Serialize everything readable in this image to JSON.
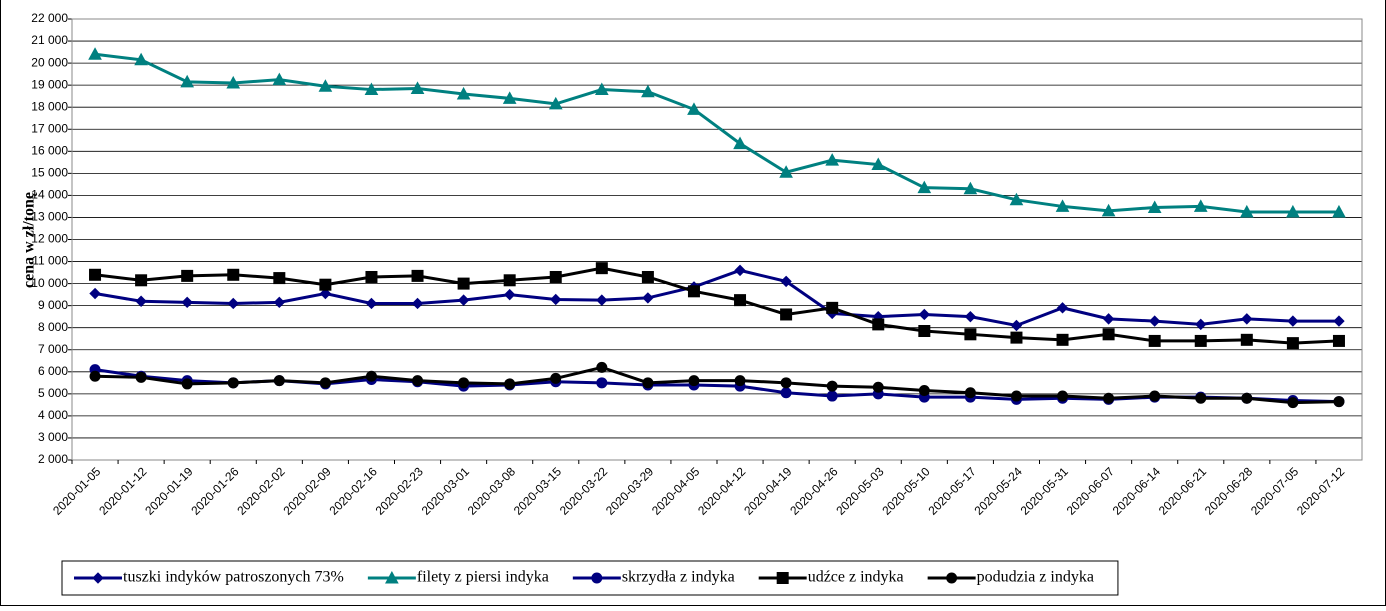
{
  "chart_data": {
    "type": "line",
    "y_label": "cena w zł/tonę",
    "categories": [
      "2020-01-05",
      "2020-01-12",
      "2020-01-19",
      "2020-01-26",
      "2020-02-02",
      "2020-02-09",
      "2020-02-16",
      "2020-02-23",
      "2020-03-01",
      "2020-03-08",
      "2020-03-15",
      "2020-03-22",
      "2020-03-29",
      "2020-04-05",
      "2020-04-12",
      "2020-04-19",
      "2020-04-26",
      "2020-05-03",
      "2020-05-10",
      "2020-05-17",
      "2020-05-24",
      "2020-05-31",
      "2020-06-07",
      "2020-06-14",
      "2020-06-21",
      "2020-06-28",
      "2020-07-05",
      "2020-07-12"
    ],
    "series": [
      {
        "name": "tuszki indyków patroszonych 73%",
        "color": "#000080",
        "marker": "diamond",
        "values": [
          9550,
          9200,
          9150,
          9100,
          9150,
          9550,
          9100,
          9100,
          9250,
          9500,
          9280,
          9250,
          9350,
          9850,
          10600,
          10100,
          8650,
          8500,
          8600,
          8500,
          8100,
          8900,
          8400,
          8300,
          8150,
          8400,
          8300,
          8300
        ]
      },
      {
        "name": "filety z piersi indyka",
        "color": "#008080",
        "marker": "triangle",
        "values": [
          20400,
          20150,
          19150,
          19100,
          19250,
          18950,
          18800,
          18850,
          18600,
          18400,
          18150,
          18800,
          18700,
          17900,
          16350,
          15050,
          15600,
          15400,
          14350,
          14300,
          13800,
          13500,
          13300,
          13450,
          13500,
          13250,
          13250,
          13250
        ]
      },
      {
        "name": "skrzydła z indyka",
        "color": "#000080",
        "marker": "circle",
        "values": [
          6100,
          5800,
          5600,
          5500,
          5600,
          5450,
          5650,
          5550,
          5350,
          5400,
          5550,
          5500,
          5400,
          5400,
          5350,
          5050,
          4900,
          5000,
          4850,
          4850,
          4750,
          4800,
          4750,
          4850,
          4850,
          4800,
          4700,
          4650
        ]
      },
      {
        "name": "udźce z indyka",
        "color": "#000000",
        "marker": "square",
        "values": [
          10400,
          10150,
          10350,
          10400,
          10250,
          9950,
          10300,
          10350,
          10000,
          10150,
          10300,
          10700,
          10300,
          9650,
          9250,
          8600,
          8900,
          8150,
          7850,
          7700,
          7550,
          7450,
          7700,
          7400,
          7400,
          7450,
          7300,
          7400
        ]
      },
      {
        "name": "podudzia z indyka",
        "color": "#000000",
        "marker": "circle",
        "values": [
          5800,
          5750,
          5450,
          5500,
          5600,
          5500,
          5800,
          5600,
          5500,
          5450,
          5700,
          6200,
          5500,
          5600,
          5600,
          5500,
          5350,
          5300,
          5150,
          5050,
          4900,
          4900,
          4800,
          4900,
          4800,
          4800,
          4600,
          4650
        ]
      }
    ],
    "ylim": [
      2000,
      22000
    ],
    "yticks": [
      {
        "value": 2000,
        "label": "2 000"
      },
      {
        "value": 3000,
        "label": "3 000"
      },
      {
        "value": 4000,
        "label": "4 000"
      },
      {
        "value": 5000,
        "label": "5 000"
      },
      {
        "value": 6000,
        "label": "6 000"
      },
      {
        "value": 7000,
        "label": "7 000"
      },
      {
        "value": 8000,
        "label": "8 000"
      },
      {
        "value": 9000,
        "label": "9 000"
      },
      {
        "value": 10000,
        "label": "10 000"
      },
      {
        "value": 11000,
        "label": "11 000"
      },
      {
        "value": 12000,
        "label": "12 000"
      },
      {
        "value": 13000,
        "label": "13 000"
      },
      {
        "value": 14000,
        "label": "14 000"
      },
      {
        "value": 15000,
        "label": "15 000"
      },
      {
        "value": 16000,
        "label": "16 000"
      },
      {
        "value": 17000,
        "label": "17 000"
      },
      {
        "value": 18000,
        "label": "18 000"
      },
      {
        "value": 19000,
        "label": "19 000"
      },
      {
        "value": 20000,
        "label": "20 000"
      },
      {
        "value": 21000,
        "label": "21 000"
      },
      {
        "value": 22000,
        "label": "22 000"
      }
    ],
    "grid": true,
    "legend": "bottom"
  }
}
